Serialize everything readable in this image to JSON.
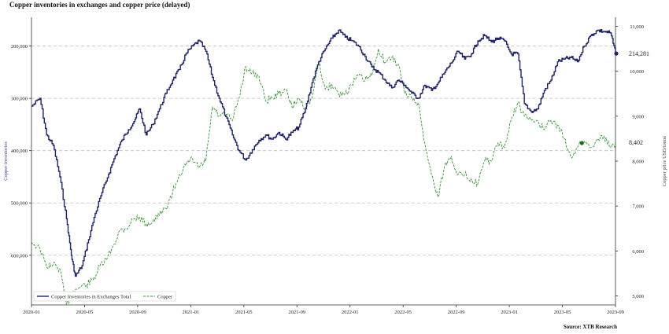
{
  "chart_data": {
    "type": "line",
    "title": "Copper inventories in exchanges and copper price (delayed)",
    "source": "Source: XTB Research",
    "ylabel_left": "Copper inventories",
    "ylabel_right": "Copper price USD/tonne",
    "left_axis": {
      "inverted": true,
      "range": [
        145000,
        695000
      ],
      "ticks": [
        "200,000",
        "300,000",
        "400,000",
        "500,000",
        "600,000"
      ],
      "tick_values": [
        200000,
        300000,
        400000,
        500000,
        600000
      ]
    },
    "right_axis": {
      "range": [
        4800,
        11200
      ],
      "ticks": [
        "5,000",
        "6,000",
        "7,000",
        "8,000",
        "9,000",
        "10,000",
        "11,000"
      ],
      "tick_values": [
        5000,
        6000,
        7000,
        8000,
        9000,
        10000,
        11000
      ]
    },
    "x_ticks": [
      "2020-01",
      "2020-05",
      "2020-09",
      "2021-01",
      "2021-05",
      "2021-09",
      "2022-01",
      "2022-05",
      "2022-09",
      "2023-01",
      "2023-05",
      "2023-09"
    ],
    "x_range": [
      "2020-01",
      "2023-09"
    ],
    "grid": "horizontal",
    "legend_position": "bottom-left",
    "series": [
      {
        "name": "Copper Inventories in Exchanges Total",
        "axis": "left",
        "color": "#1f2370",
        "style": "solid",
        "last_label": "214,281",
        "points": [
          [
            "2020-01-01",
            315000
          ],
          [
            "2020-01-20",
            300000
          ],
          [
            "2020-02-05",
            370000
          ],
          [
            "2020-02-20",
            390000
          ],
          [
            "2020-03-05",
            450000
          ],
          [
            "2020-03-20",
            530000
          ],
          [
            "2020-04-01",
            600000
          ],
          [
            "2020-04-10",
            640000
          ],
          [
            "2020-04-25",
            620000
          ],
          [
            "2020-05-10",
            570000
          ],
          [
            "2020-05-25",
            520000
          ],
          [
            "2020-06-10",
            480000
          ],
          [
            "2020-06-25",
            445000
          ],
          [
            "2020-07-10",
            410000
          ],
          [
            "2020-07-25",
            380000
          ],
          [
            "2020-08-10",
            360000
          ],
          [
            "2020-08-25",
            340000
          ],
          [
            "2020-09-05",
            320000
          ],
          [
            "2020-09-20",
            370000
          ],
          [
            "2020-10-05",
            350000
          ],
          [
            "2020-10-20",
            320000
          ],
          [
            "2020-11-05",
            290000
          ],
          [
            "2020-11-20",
            265000
          ],
          [
            "2020-12-05",
            245000
          ],
          [
            "2020-12-20",
            215000
          ],
          [
            "2021-01-05",
            200000
          ],
          [
            "2021-01-20",
            190000
          ],
          [
            "2021-02-05",
            210000
          ],
          [
            "2021-02-20",
            260000
          ],
          [
            "2021-03-05",
            300000
          ],
          [
            "2021-03-20",
            335000
          ],
          [
            "2021-04-05",
            370000
          ],
          [
            "2021-04-20",
            400000
          ],
          [
            "2021-05-05",
            418000
          ],
          [
            "2021-05-20",
            398000
          ],
          [
            "2021-06-05",
            380000
          ],
          [
            "2021-06-20",
            370000
          ],
          [
            "2021-07-05",
            378000
          ],
          [
            "2021-07-20",
            365000
          ],
          [
            "2021-08-05",
            378000
          ],
          [
            "2021-08-20",
            365000
          ],
          [
            "2021-09-05",
            355000
          ],
          [
            "2021-09-20",
            320000
          ],
          [
            "2021-10-05",
            270000
          ],
          [
            "2021-10-20",
            230000
          ],
          [
            "2021-11-05",
            205000
          ],
          [
            "2021-11-20",
            185000
          ],
          [
            "2021-12-05",
            170000
          ],
          [
            "2021-12-20",
            183000
          ],
          [
            "2022-01-05",
            190000
          ],
          [
            "2022-01-20",
            200000
          ],
          [
            "2022-02-05",
            220000
          ],
          [
            "2022-02-20",
            240000
          ],
          [
            "2022-03-05",
            250000
          ],
          [
            "2022-03-20",
            265000
          ],
          [
            "2022-04-05",
            280000
          ],
          [
            "2022-04-20",
            265000
          ],
          [
            "2022-05-05",
            275000
          ],
          [
            "2022-05-20",
            290000
          ],
          [
            "2022-06-05",
            300000
          ],
          [
            "2022-06-20",
            275000
          ],
          [
            "2022-07-05",
            285000
          ],
          [
            "2022-07-20",
            270000
          ],
          [
            "2022-08-05",
            250000
          ],
          [
            "2022-08-20",
            232000
          ],
          [
            "2022-09-05",
            210000
          ],
          [
            "2022-09-20",
            225000
          ],
          [
            "2022-10-05",
            215000
          ],
          [
            "2022-10-20",
            190000
          ],
          [
            "2022-11-05",
            180000
          ],
          [
            "2022-11-20",
            192000
          ],
          [
            "2022-12-05",
            185000
          ],
          [
            "2022-12-20",
            190000
          ],
          [
            "2023-01-05",
            215000
          ],
          [
            "2023-01-20",
            215000
          ],
          [
            "2023-02-05",
            310000
          ],
          [
            "2023-02-20",
            325000
          ],
          [
            "2023-03-05",
            320000
          ],
          [
            "2023-03-20",
            285000
          ],
          [
            "2023-04-05",
            265000
          ],
          [
            "2023-04-20",
            230000
          ],
          [
            "2023-05-05",
            225000
          ],
          [
            "2023-05-20",
            222000
          ],
          [
            "2023-06-05",
            230000
          ],
          [
            "2023-06-20",
            200000
          ],
          [
            "2023-07-05",
            180000
          ],
          [
            "2023-07-20",
            170000
          ],
          [
            "2023-08-05",
            172000
          ],
          [
            "2023-08-20",
            175000
          ],
          [
            "2023-09-01",
            214281
          ]
        ]
      },
      {
        "name": "Copper",
        "axis": "right",
        "color": "#2e9a2e",
        "style": "dashed",
        "last_label": "8,402",
        "points": [
          [
            "2020-01-01",
            6200
          ],
          [
            "2020-01-20",
            6050
          ],
          [
            "2020-02-05",
            5650
          ],
          [
            "2020-02-20",
            5700
          ],
          [
            "2020-03-05",
            5600
          ],
          [
            "2020-03-20",
            4800
          ],
          [
            "2020-04-05",
            5100
          ],
          [
            "2020-04-20",
            5200
          ],
          [
            "2020-05-05",
            5250
          ],
          [
            "2020-05-20",
            5350
          ],
          [
            "2020-06-05",
            5650
          ],
          [
            "2020-06-20",
            5800
          ],
          [
            "2020-07-05",
            6100
          ],
          [
            "2020-07-20",
            6450
          ],
          [
            "2020-08-05",
            6500
          ],
          [
            "2020-08-20",
            6700
          ],
          [
            "2020-09-05",
            6750
          ],
          [
            "2020-09-20",
            6600
          ],
          [
            "2020-10-05",
            6650
          ],
          [
            "2020-10-20",
            6800
          ],
          [
            "2020-11-05",
            6950
          ],
          [
            "2020-11-20",
            7300
          ],
          [
            "2020-12-05",
            7700
          ],
          [
            "2020-12-20",
            7900
          ],
          [
            "2021-01-05",
            8050
          ],
          [
            "2021-01-20",
            7850
          ],
          [
            "2021-02-05",
            8000
          ],
          [
            "2021-02-20",
            9200
          ],
          [
            "2021-03-05",
            9000
          ],
          [
            "2021-03-20",
            9050
          ],
          [
            "2021-04-05",
            8900
          ],
          [
            "2021-04-20",
            9400
          ],
          [
            "2021-05-05",
            10100
          ],
          [
            "2021-05-20",
            9950
          ],
          [
            "2021-06-05",
            9900
          ],
          [
            "2021-06-20",
            9350
          ],
          [
            "2021-07-05",
            9400
          ],
          [
            "2021-07-20",
            9500
          ],
          [
            "2021-08-05",
            9600
          ],
          [
            "2021-08-20",
            9200
          ],
          [
            "2021-09-05",
            9400
          ],
          [
            "2021-09-20",
            9200
          ],
          [
            "2021-10-05",
            9400
          ],
          [
            "2021-10-20",
            10200
          ],
          [
            "2021-11-05",
            9600
          ],
          [
            "2021-11-20",
            9700
          ],
          [
            "2021-12-05",
            9500
          ],
          [
            "2021-12-20",
            9500
          ],
          [
            "2022-01-05",
            9700
          ],
          [
            "2022-01-20",
            9900
          ],
          [
            "2022-02-05",
            9800
          ],
          [
            "2022-02-20",
            9900
          ],
          [
            "2022-03-05",
            10500
          ],
          [
            "2022-03-20",
            10200
          ],
          [
            "2022-04-05",
            10300
          ],
          [
            "2022-04-20",
            10150
          ],
          [
            "2022-05-05",
            9500
          ],
          [
            "2022-05-20",
            9400
          ],
          [
            "2022-06-05",
            9300
          ],
          [
            "2022-06-20",
            8400
          ],
          [
            "2022-07-05",
            7700
          ],
          [
            "2022-07-20",
            7200
          ],
          [
            "2022-08-05",
            7900
          ],
          [
            "2022-08-20",
            8100
          ],
          [
            "2022-09-05",
            7700
          ],
          [
            "2022-09-20",
            7700
          ],
          [
            "2022-10-05",
            7600
          ],
          [
            "2022-10-20",
            7500
          ],
          [
            "2022-11-05",
            8000
          ],
          [
            "2022-11-20",
            8000
          ],
          [
            "2022-12-05",
            8400
          ],
          [
            "2022-12-20",
            8300
          ],
          [
            "2023-01-05",
            8900
          ],
          [
            "2023-01-20",
            9300
          ],
          [
            "2023-02-05",
            9000
          ],
          [
            "2023-02-20",
            8900
          ],
          [
            "2023-03-05",
            8900
          ],
          [
            "2023-03-20",
            8700
          ],
          [
            "2023-04-05",
            8900
          ],
          [
            "2023-04-20",
            8800
          ],
          [
            "2023-05-05",
            8500
          ],
          [
            "2023-05-20",
            8100
          ],
          [
            "2023-06-05",
            8300
          ],
          [
            "2023-06-20",
            8450
          ],
          [
            "2023-07-05",
            8300
          ],
          [
            "2023-07-20",
            8500
          ],
          [
            "2023-08-05",
            8550
          ],
          [
            "2023-08-20",
            8300
          ],
          [
            "2023-09-01",
            8402
          ]
        ]
      }
    ]
  }
}
